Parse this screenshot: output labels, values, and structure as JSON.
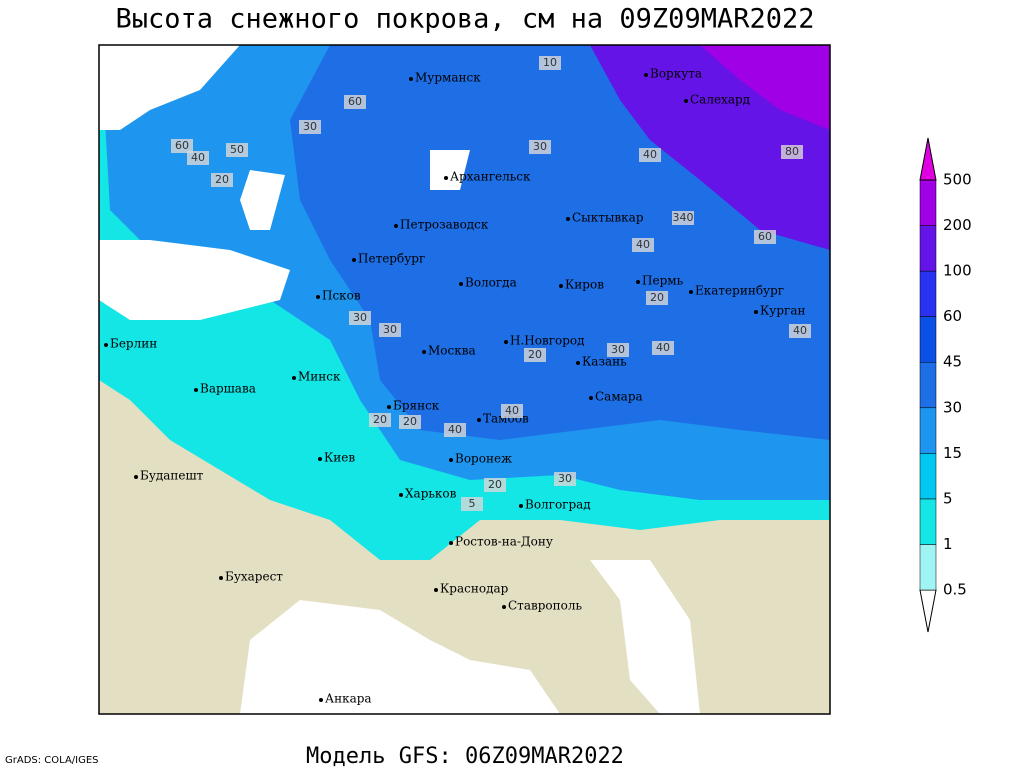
{
  "header": {
    "title": "Высота снежного покрова, см на 09Z09MAR2022"
  },
  "footer": {
    "model": "Модель GFS: 06Z09MAR2022",
    "credit": "GrADS: COLA/IGES"
  },
  "legend": {
    "levels": [
      0.5,
      1,
      5,
      15,
      30,
      45,
      60,
      100,
      200,
      500
    ],
    "colors": [
      "#a0f4f4",
      "#14e6e6",
      "#00c8f0",
      "#1e96f0",
      "#1e6ee6",
      "#0a50e6",
      "#2832f0",
      "#6414e6",
      "#a000e6"
    ]
  },
  "cities": [
    "Мурманск",
    "Воркута",
    "Салехард",
    "Архангельск",
    "Сыктывкар",
    "Петрозаводск",
    "Петербург",
    "Вологда",
    "Киров",
    "Пермь",
    "Екатеринбург",
    "Курган",
    "Псков",
    "Н.Новгород",
    "Казань",
    "Москва",
    "Берлин",
    "Варшава",
    "Минск",
    "Брянск",
    "Тамбов",
    "Самара",
    "Воронеж",
    "Киев",
    "Харьков",
    "Волгоград",
    "Будапешт",
    "Ростов-на-Дону",
    "Бухарест",
    "Краснодар",
    "Ставрополь",
    "Анкара"
  ],
  "depth_labels": [
    10,
    60,
    50,
    30,
    40,
    60,
    20,
    30,
    80,
    40,
    340,
    60,
    40,
    30,
    20,
    40,
    40,
    30,
    20,
    40,
    20,
    40,
    20,
    30,
    5,
    20,
    30
  ]
}
